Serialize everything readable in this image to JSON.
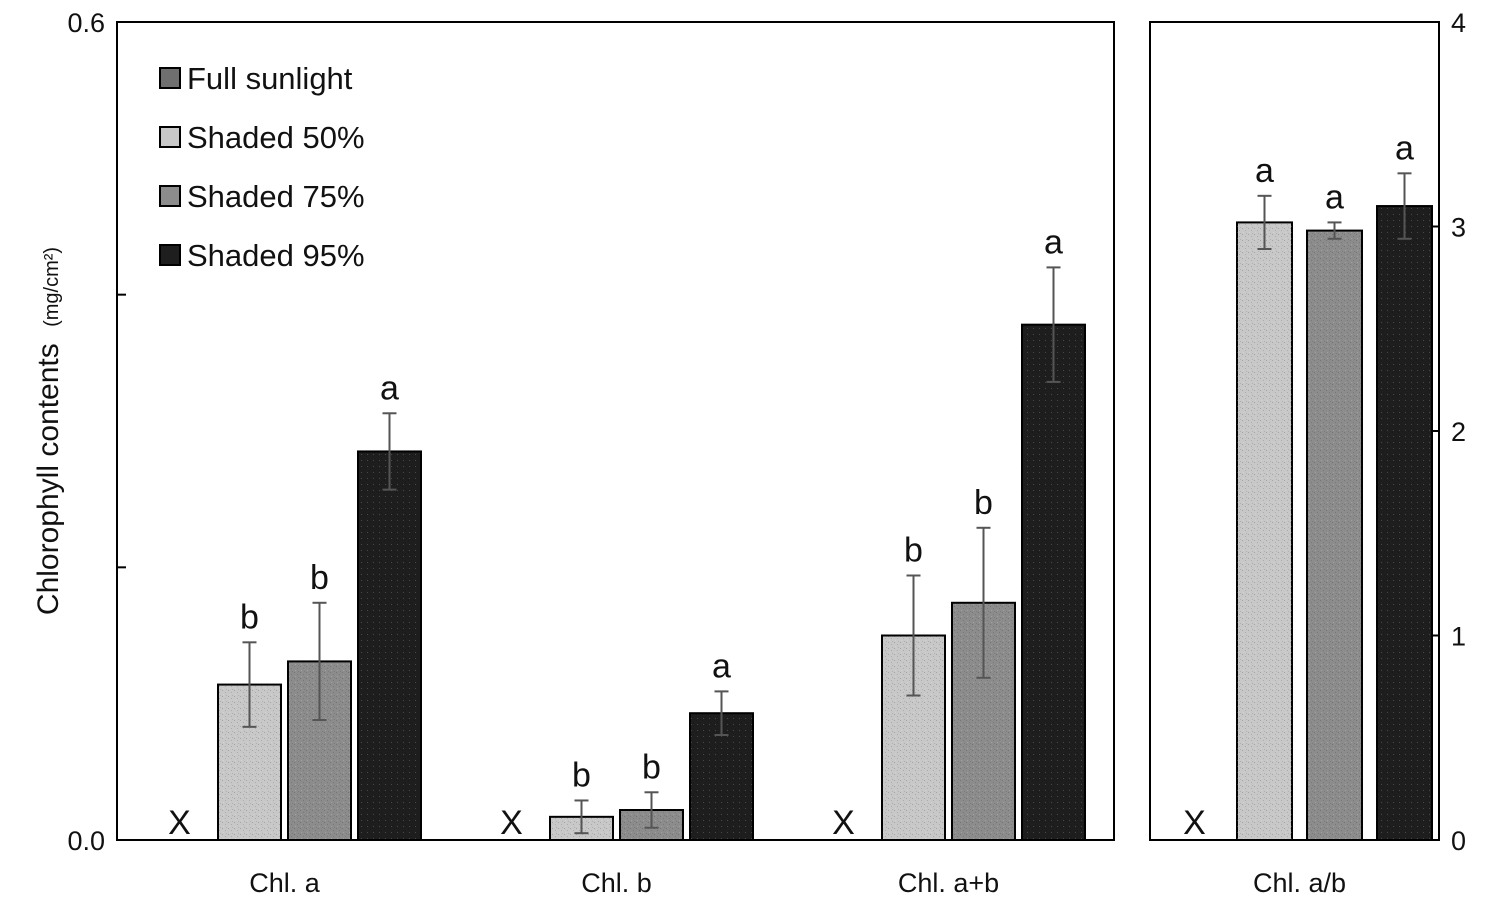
{
  "legend": {
    "placement": "top-left",
    "entries": [
      "Full sunlight",
      "Shaded 50%",
      "Shaded 75%",
      "Shaded 95%"
    ]
  },
  "colors": {
    "Full sunlight": "#6f6f6f",
    "Shaded 50%": "#c8c8c8",
    "Shaded 75%": "#8c8c8c",
    "Shaded 95%": "#1e1e1e"
  },
  "chart_data": [
    {
      "type": "bar",
      "title": "",
      "ylabel": "Chlorophyll contents",
      "ylabel_unit": "(mg/cm²)",
      "xlabel": "",
      "ylim": [
        0,
        0.6
      ],
      "yticks": [
        0.0,
        0.2,
        0.4,
        0.6
      ],
      "yticklabels": [
        "0.0",
        "",
        "",
        "0.6"
      ],
      "grid": false,
      "categories": [
        "Chl. a",
        "Chl. b",
        "Chl. a+b"
      ],
      "missing_marker": "X",
      "series": [
        {
          "name": "Full sunlight",
          "values": [
            null,
            null,
            null
          ],
          "errors": [
            null,
            null,
            null
          ],
          "letters": [
            "X",
            "X",
            "X"
          ]
        },
        {
          "name": "Shaded 50%",
          "values": [
            0.114,
            0.017,
            0.15
          ],
          "errors": [
            0.031,
            0.012,
            0.044
          ],
          "letters": [
            "b",
            "b",
            "b"
          ]
        },
        {
          "name": "Shaded 75%",
          "values": [
            0.131,
            0.022,
            0.174
          ],
          "errors": [
            0.043,
            0.013,
            0.055
          ],
          "letters": [
            "b",
            "b",
            "b"
          ]
        },
        {
          "name": "Shaded 95%",
          "values": [
            0.285,
            0.093,
            0.378
          ],
          "errors": [
            0.028,
            0.016,
            0.042
          ],
          "letters": [
            "a",
            "a",
            "a"
          ]
        }
      ]
    },
    {
      "type": "bar",
      "title": "",
      "ylabel": "",
      "xlabel": "",
      "ylim": [
        0,
        4
      ],
      "yticks": [
        0,
        1,
        2,
        3,
        4
      ],
      "yticklabels": [
        "0",
        "1",
        "2",
        "3",
        "4"
      ],
      "grid": false,
      "categories": [
        "Chl. a/b"
      ],
      "missing_marker": "X",
      "series": [
        {
          "name": "Full sunlight",
          "values": [
            null
          ],
          "errors": [
            null
          ],
          "letters": [
            "X"
          ]
        },
        {
          "name": "Shaded 50%",
          "values": [
            3.02
          ],
          "errors": [
            0.13
          ],
          "letters": [
            "a"
          ]
        },
        {
          "name": "Shaded 75%",
          "values": [
            2.98
          ],
          "errors": [
            0.04
          ],
          "letters": [
            "a"
          ]
        },
        {
          "name": "Shaded 95%",
          "values": [
            3.1
          ],
          "errors": [
            0.16
          ],
          "letters": [
            "a"
          ]
        }
      ]
    }
  ]
}
